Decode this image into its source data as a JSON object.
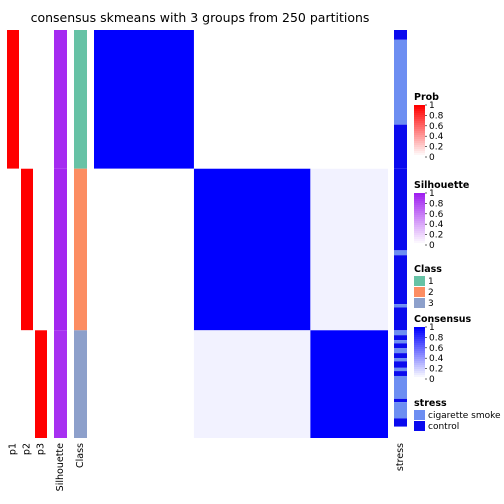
{
  "chart_data": {
    "type": "heatmap",
    "title": "consensus skmeans with 3 groups from 250 partitions",
    "n_samples": 250,
    "column_labels": [
      "p1",
      "p2",
      "p3",
      "Silhouette",
      "Class",
      "stress"
    ],
    "groups": [
      {
        "class": 1,
        "size": 85,
        "stress_runs": [
          [
            "control",
            6
          ],
          [
            "cigarette smoke",
            52
          ],
          [
            "control",
            27
          ]
        ]
      },
      {
        "class": 2,
        "size": 99,
        "stress_runs": [
          [
            "control",
            50
          ],
          [
            "cigarette smoke",
            3
          ],
          [
            "control",
            30
          ],
          [
            "cigarette smoke",
            2
          ],
          [
            "control",
            14
          ]
        ]
      },
      {
        "class": 3,
        "size": 66,
        "stress_runs": [
          [
            "cigarette smoke",
            3
          ],
          [
            "control",
            3
          ],
          [
            "cigarette smoke",
            2
          ],
          [
            "control",
            3
          ],
          [
            "cigarette smoke",
            3
          ],
          [
            "control",
            3
          ],
          [
            "cigarette smoke",
            2
          ],
          [
            "control",
            4
          ],
          [
            "cigarette smoke",
            2
          ],
          [
            "control",
            3
          ],
          [
            "cigarette smoke",
            14
          ],
          [
            "control",
            2
          ],
          [
            "cigarette smoke",
            10
          ],
          [
            "control",
            5
          ]
        ]
      }
    ],
    "membership_probability_by_class": {
      "1": [
        1,
        0,
        0
      ],
      "2": [
        0,
        1,
        0
      ],
      "3": [
        0,
        0,
        1
      ]
    },
    "silhouette_by_class": {
      "1": 0.95,
      "2": 0.97,
      "3": 0.93
    },
    "consensus_within_class": 1,
    "consensus_between_classes": 0.0,
    "consensus_class2_vs_class3": 0.05,
    "legends": [
      {
        "title": "Prob",
        "type": "gradient",
        "ticks": [
          "1",
          "0.8",
          "0.6",
          "0.4",
          "0.2",
          "0"
        ],
        "colors": [
          "#ff0000",
          "#ffffff"
        ]
      },
      {
        "title": "Silhouette",
        "type": "gradient",
        "ticks": [
          "1",
          "0.8",
          "0.6",
          "0.4",
          "0.2",
          "0"
        ],
        "colors": [
          "#a020f0",
          "#ffffff"
        ]
      },
      {
        "title": "Class",
        "type": "discrete",
        "items": [
          {
            "label": "1",
            "color": "#66c2a5"
          },
          {
            "label": "2",
            "color": "#fc8d62"
          },
          {
            "label": "3",
            "color": "#8da0cb"
          }
        ]
      },
      {
        "title": "Consensus",
        "type": "gradient",
        "ticks": [
          "1",
          "0.8",
          "0.6",
          "0.4",
          "0.2",
          "0"
        ],
        "colors": [
          "#0000ff",
          "#ffffff"
        ]
      },
      {
        "title": "stress",
        "type": "discrete",
        "items": [
          {
            "label": "cigarette smoke",
            "color": "#6d8ef2"
          },
          {
            "label": "control",
            "color": "#0a0aee"
          }
        ]
      }
    ]
  }
}
